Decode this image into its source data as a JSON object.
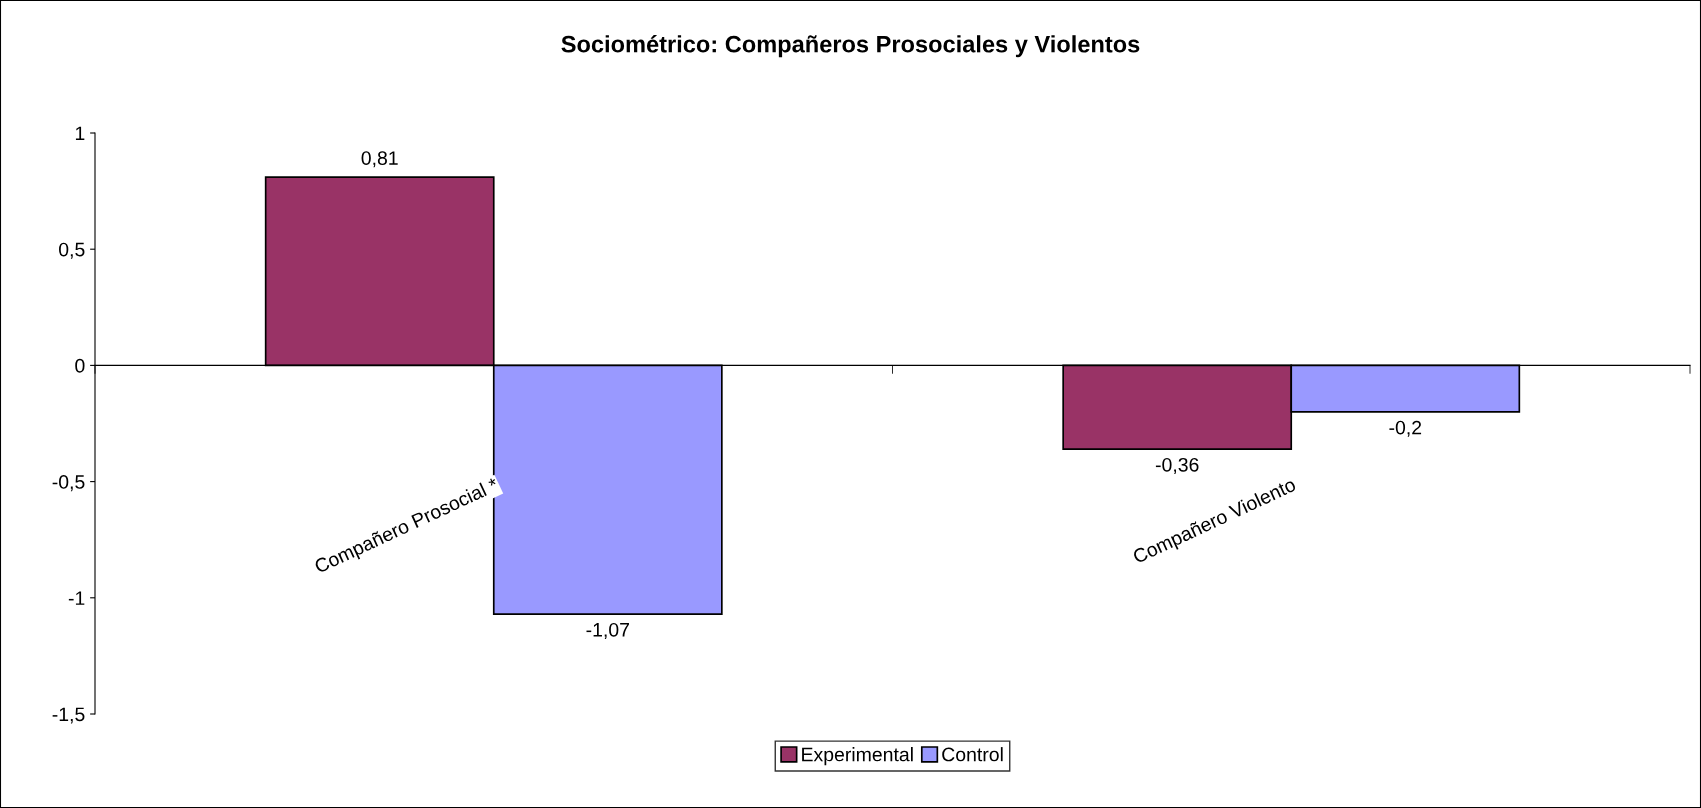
{
  "chart_data": {
    "type": "bar",
    "title": "Sociométrico: Compañeros Prosociales y Violentos",
    "categories": [
      "Compañero Prosocial *",
      "Compañero Violento"
    ],
    "series": [
      {
        "name": "Experimental",
        "color": "#993366",
        "values": [
          0.81,
          -0.36
        ],
        "value_labels": [
          "0,81",
          "-0,36"
        ]
      },
      {
        "name": "Control",
        "color": "#9999ff",
        "values": [
          -1.07,
          -0.2
        ],
        "value_labels": [
          "-1,07",
          "-0,2"
        ]
      }
    ],
    "ylim": [
      -1.5,
      1
    ],
    "yticks": [
      {
        "value": -1.5,
        "label": "-1,5"
      },
      {
        "value": -1,
        "label": "-1"
      },
      {
        "value": -0.5,
        "label": "-0,5"
      },
      {
        "value": 0,
        "label": "0"
      },
      {
        "value": 0.5,
        "label": "0,5"
      },
      {
        "value": 1,
        "label": "1"
      }
    ],
    "legend": "bottom"
  }
}
